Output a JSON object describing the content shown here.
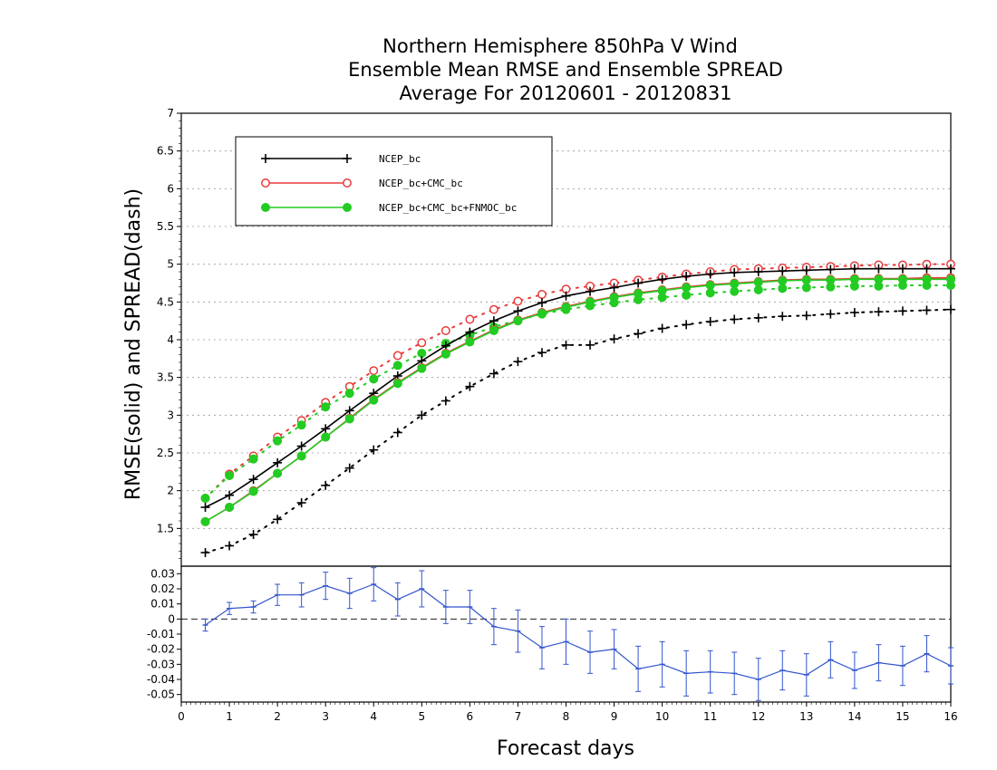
{
  "chart_data": {
    "type": "line",
    "title": [
      "Northern Hemisphere 850hPa V Wind",
      "Ensemble Mean RMSE and Ensemble SPREAD",
      "Average For 20120601 - 20120831"
    ],
    "xlabel": "Forecast days",
    "ylabel": "RMSE(solid) and SPREAD(dash)",
    "xlim": [
      0,
      16
    ],
    "x_ticks": [
      "0",
      "1",
      "2",
      "3",
      "4",
      "5",
      "6",
      "7",
      "8",
      "9",
      "10",
      "11",
      "12",
      "13",
      "14",
      "15",
      "16"
    ],
    "ylim": [
      1,
      7
    ],
    "y_ticks": [
      "1.5",
      "2",
      "2.5",
      "3",
      "3.5",
      "4",
      "4.5",
      "5",
      "5.5",
      "6",
      "6.5",
      "7"
    ],
    "grid": true,
    "legend_position": "top-left",
    "x": [
      0.5,
      1,
      1.5,
      2,
      2.5,
      3,
      3.5,
      4,
      4.5,
      5,
      5.5,
      6,
      6.5,
      7,
      7.5,
      8,
      8.5,
      9,
      9.5,
      10,
      10.5,
      11,
      11.5,
      12,
      12.5,
      13,
      13.5,
      14,
      14.5,
      15,
      15.5,
      16
    ],
    "series": [
      {
        "name": "NCEP_bc",
        "color": "#000000",
        "marker": "plus",
        "kind": "rmse",
        "values": [
          1.78,
          1.94,
          2.15,
          2.37,
          2.59,
          2.82,
          3.06,
          3.29,
          3.52,
          3.72,
          3.92,
          4.1,
          4.25,
          4.38,
          4.49,
          4.58,
          4.64,
          4.69,
          4.75,
          4.8,
          4.84,
          4.87,
          4.89,
          4.9,
          4.91,
          4.92,
          4.93,
          4.94,
          4.94,
          4.94,
          4.94,
          4.94
        ]
      },
      {
        "name": "NCEP_bc+CMC_bc",
        "color": "#e83a3a",
        "marker": "circle",
        "kind": "rmse",
        "values": [
          1.59,
          1.78,
          2.0,
          2.23,
          2.46,
          2.71,
          2.96,
          3.21,
          3.43,
          3.63,
          3.82,
          3.98,
          4.13,
          4.26,
          4.36,
          4.44,
          4.51,
          4.57,
          4.62,
          4.66,
          4.7,
          4.73,
          4.75,
          4.77,
          4.79,
          4.8,
          4.8,
          4.81,
          4.81,
          4.81,
          4.82,
          4.82
        ]
      },
      {
        "name": "NCEP_bc+CMC_bc+FNMOC_bc",
        "color": "#22cc22",
        "marker": "dot",
        "kind": "rmse",
        "values": [
          1.59,
          1.78,
          1.99,
          2.23,
          2.46,
          2.71,
          2.95,
          3.2,
          3.42,
          3.62,
          3.81,
          3.97,
          4.12,
          4.25,
          4.35,
          4.43,
          4.5,
          4.56,
          4.61,
          4.65,
          4.69,
          4.72,
          4.74,
          4.76,
          4.78,
          4.79,
          4.79,
          4.8,
          4.8,
          4.8,
          4.8,
          4.8
        ]
      },
      {
        "name": "NCEP_bc",
        "color": "#000000",
        "marker": "plus",
        "kind": "spread",
        "values": [
          1.18,
          1.27,
          1.42,
          1.62,
          1.84,
          2.07,
          2.3,
          2.54,
          2.77,
          3.0,
          3.19,
          3.38,
          3.55,
          3.71,
          3.83,
          3.93,
          3.93,
          4.01,
          4.08,
          4.15,
          4.2,
          4.24,
          4.27,
          4.29,
          4.31,
          4.32,
          4.34,
          4.36,
          4.37,
          4.38,
          4.39,
          4.4
        ]
      },
      {
        "name": "NCEP_bc+CMC_bc",
        "color": "#e83a3a",
        "marker": "circle",
        "kind": "spread",
        "values": [
          1.9,
          2.22,
          2.46,
          2.71,
          2.93,
          3.17,
          3.38,
          3.59,
          3.79,
          3.96,
          4.12,
          4.27,
          4.4,
          4.51,
          4.6,
          4.67,
          4.71,
          4.75,
          4.79,
          4.83,
          4.87,
          4.9,
          4.93,
          4.94,
          4.95,
          4.96,
          4.97,
          4.98,
          4.99,
          4.99,
          5.0,
          5.0
        ]
      },
      {
        "name": "NCEP_bc+CMC_bc+FNMOC_bc",
        "color": "#22cc22",
        "marker": "dot",
        "kind": "spread",
        "values": [
          1.9,
          2.2,
          2.42,
          2.66,
          2.87,
          3.11,
          3.29,
          3.48,
          3.66,
          3.82,
          3.95,
          4.06,
          4.17,
          4.26,
          4.34,
          4.4,
          4.45,
          4.49,
          4.53,
          4.56,
          4.59,
          4.62,
          4.64,
          4.66,
          4.68,
          4.69,
          4.7,
          4.71,
          4.71,
          4.72,
          4.72,
          4.72
        ]
      }
    ],
    "legend": [
      "NCEP_bc",
      "NCEP_bc+CMC_bc",
      "NCEP_bc+CMC_bc+FNMOC_bc"
    ],
    "difference_panel": {
      "type": "line_errorbar",
      "color": "#3355cc",
      "ylim": [
        -0.055,
        0.035
      ],
      "y_ticks": [
        "0.03",
        "0.02",
        "0.01",
        "0",
        "-0.01",
        "-0.02",
        "-0.03",
        "-0.04",
        "-0.05"
      ],
      "zero_line": true,
      "x": [
        0.5,
        1,
        1.5,
        2,
        2.5,
        3,
        3.5,
        4,
        4.5,
        5,
        5.5,
        6,
        6.5,
        7,
        7.5,
        8,
        8.5,
        9,
        9.5,
        10,
        10.5,
        11,
        11.5,
        12,
        12.5,
        13,
        13.5,
        14,
        14.5,
        15,
        15.5,
        16
      ],
      "values": [
        -0.004,
        0.007,
        0.008,
        0.016,
        0.016,
        0.022,
        0.017,
        0.023,
        0.013,
        0.02,
        0.008,
        0.008,
        -0.005,
        -0.008,
        -0.019,
        -0.015,
        -0.022,
        -0.02,
        -0.033,
        -0.03,
        -0.036,
        -0.035,
        -0.036,
        -0.04,
        -0.034,
        -0.037,
        -0.027,
        -0.034,
        -0.029,
        -0.031,
        -0.023,
        -0.031
      ],
      "errors": [
        0.004,
        0.004,
        0.004,
        0.007,
        0.008,
        0.009,
        0.01,
        0.011,
        0.011,
        0.012,
        0.011,
        0.011,
        0.012,
        0.014,
        0.014,
        0.015,
        0.014,
        0.013,
        0.015,
        0.015,
        0.015,
        0.014,
        0.014,
        0.014,
        0.013,
        0.014,
        0.012,
        0.012,
        0.012,
        0.013,
        0.012,
        0.012
      ]
    }
  }
}
